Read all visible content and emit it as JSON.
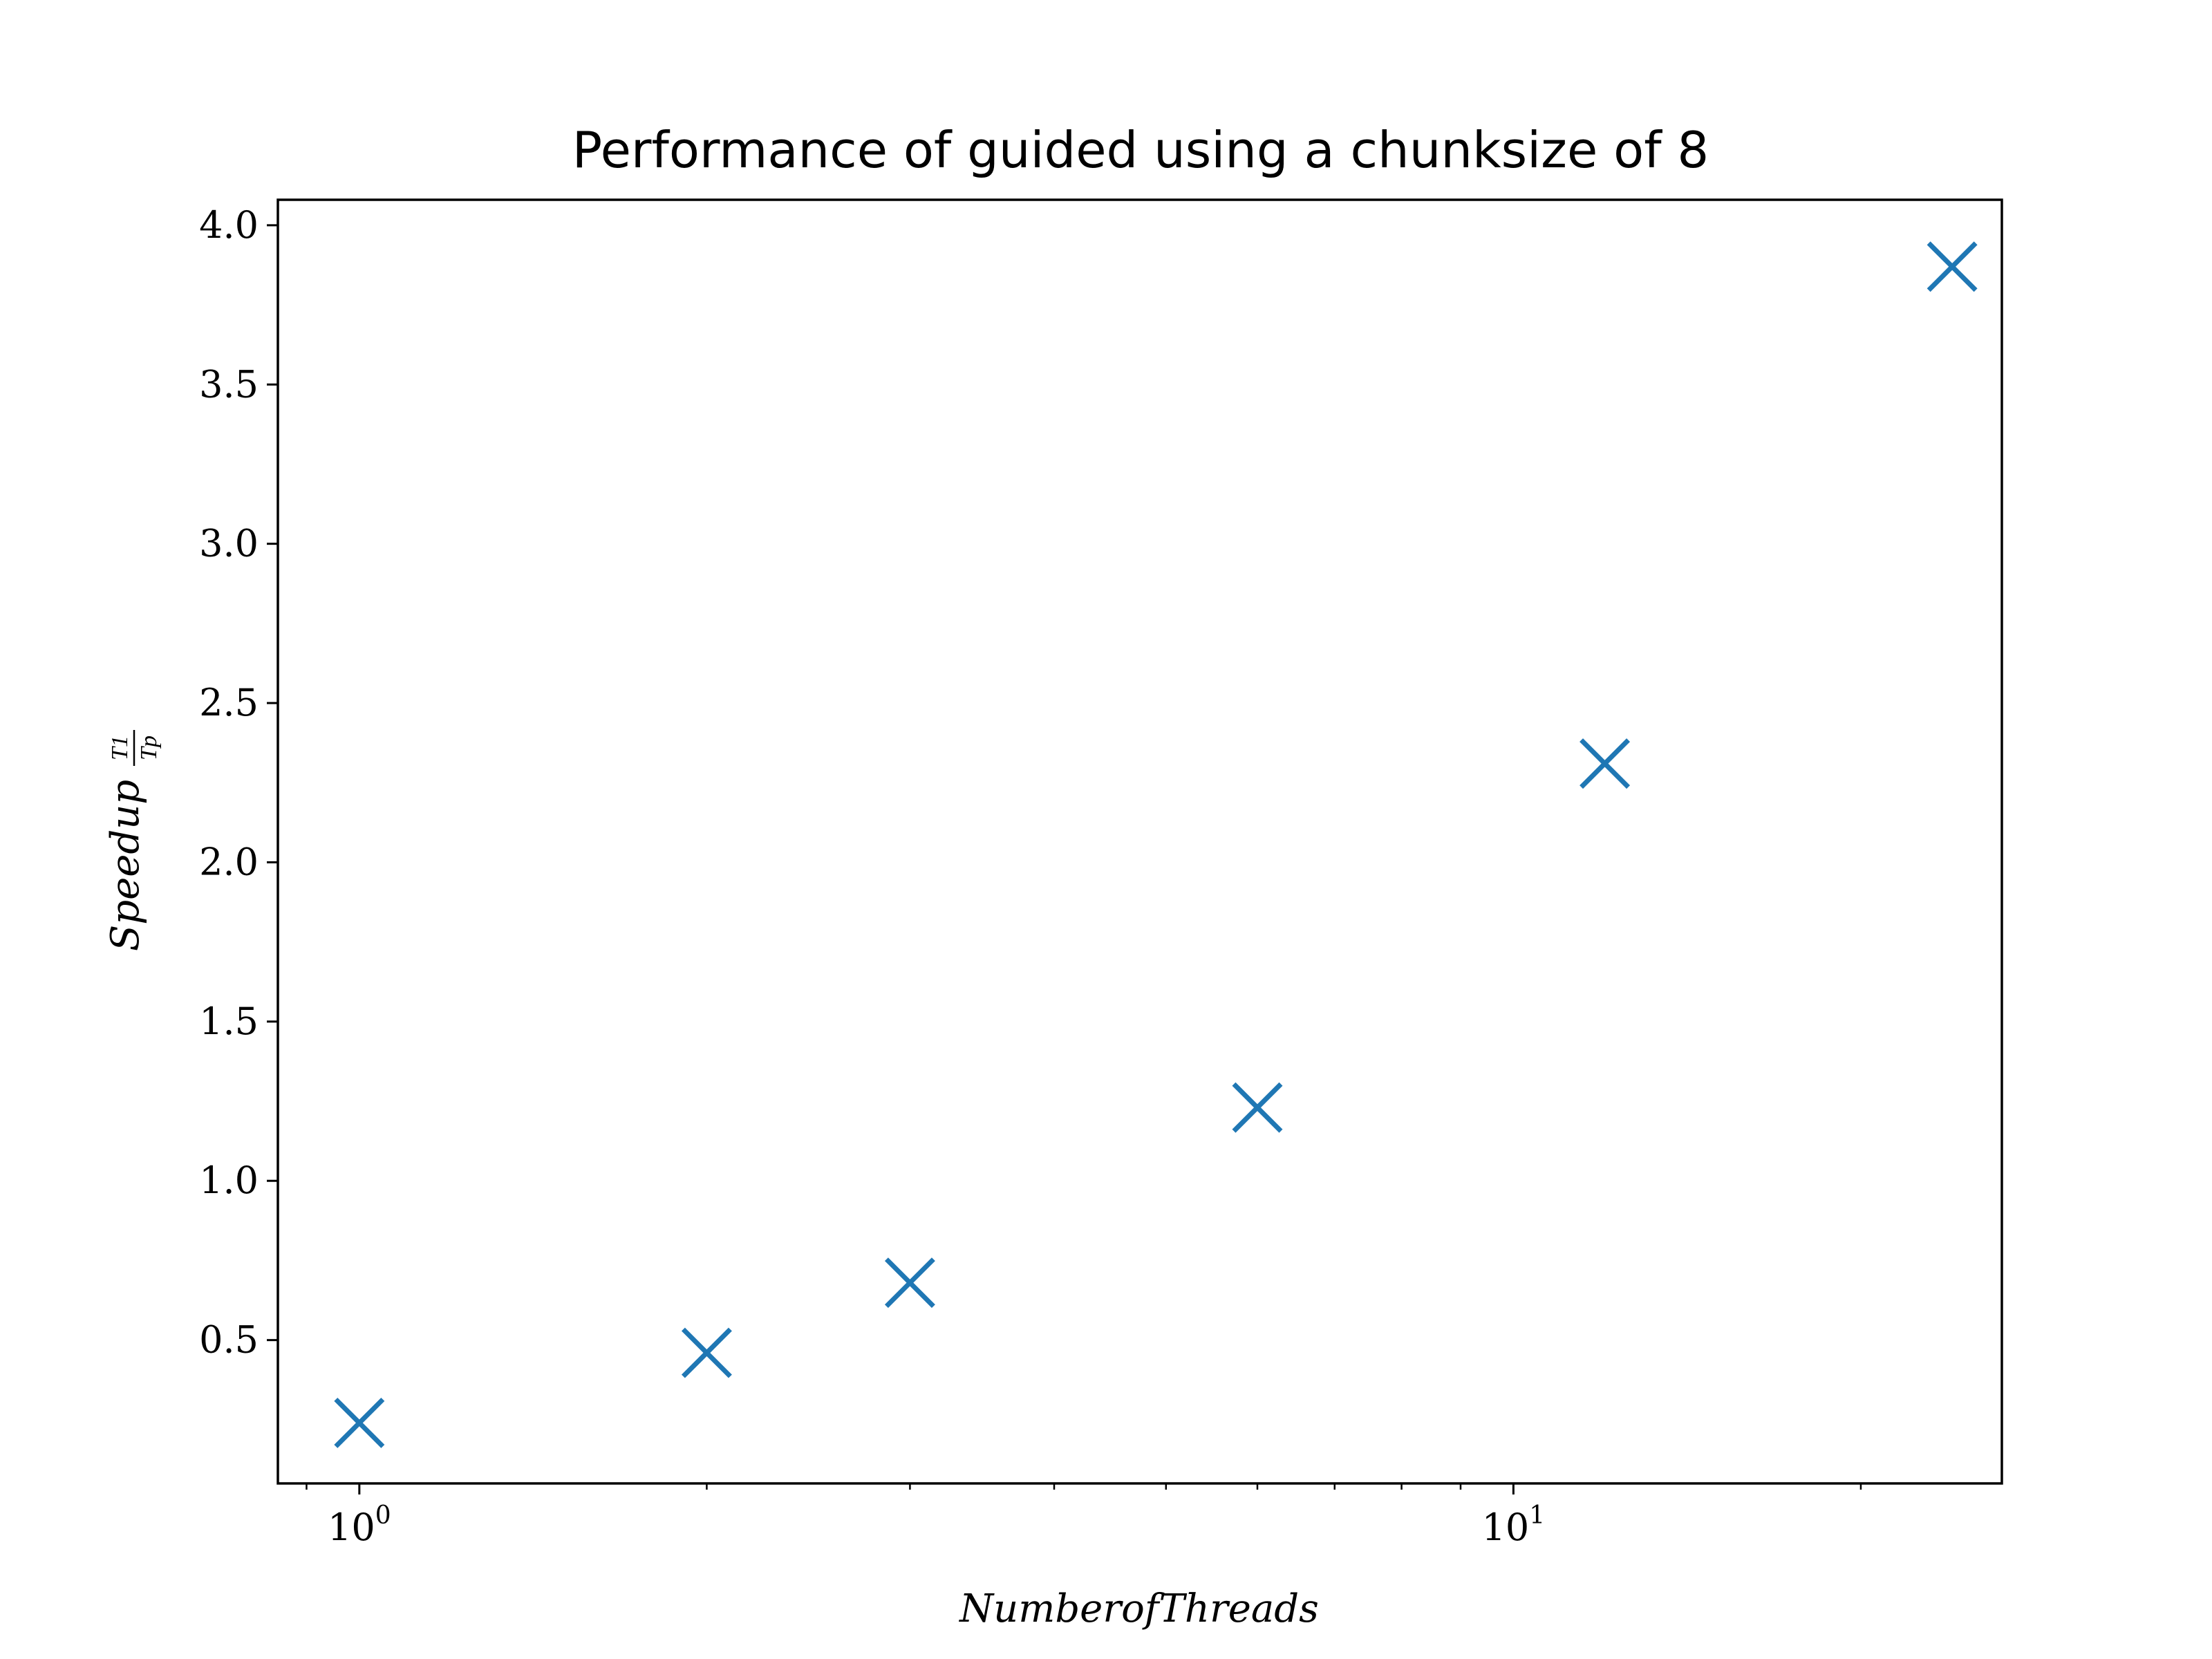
{
  "chart_data": {
    "type": "scatter",
    "title": "Performance of guided using a chunksize of 8",
    "xlabel": "NumberofThreads",
    "ylabel": "Speedup",
    "ylabel_fraction": {
      "numerator": "T1",
      "denominator": "Tp"
    },
    "xscale": "log",
    "xlim": [
      0.85,
      26.5
    ],
    "ylim": [
      0.05,
      4.08
    ],
    "x_major_ticks": [
      {
        "value": 1,
        "base": "10",
        "exponent": "0"
      },
      {
        "value": 10,
        "base": "10",
        "exponent": "1"
      }
    ],
    "x_minor_ticks": [
      0.9,
      2,
      3,
      4,
      5,
      6,
      7,
      8,
      9,
      20
    ],
    "yticks": [
      0.5,
      1.0,
      1.5,
      2.0,
      2.5,
      3.0,
      3.5,
      4.0
    ],
    "ytick_labels": [
      "0.5",
      "1.0",
      "1.5",
      "2.0",
      "2.5",
      "3.0",
      "3.5",
      "4.0"
    ],
    "grid": false,
    "marker": "x",
    "color": "#1f77b4",
    "points": [
      {
        "x": 1,
        "y": 0.24
      },
      {
        "x": 2,
        "y": 0.46
      },
      {
        "x": 3,
        "y": 0.68
      },
      {
        "x": 6,
        "y": 1.23
      },
      {
        "x": 12,
        "y": 2.31
      },
      {
        "x": 24,
        "y": 3.87
      }
    ]
  }
}
